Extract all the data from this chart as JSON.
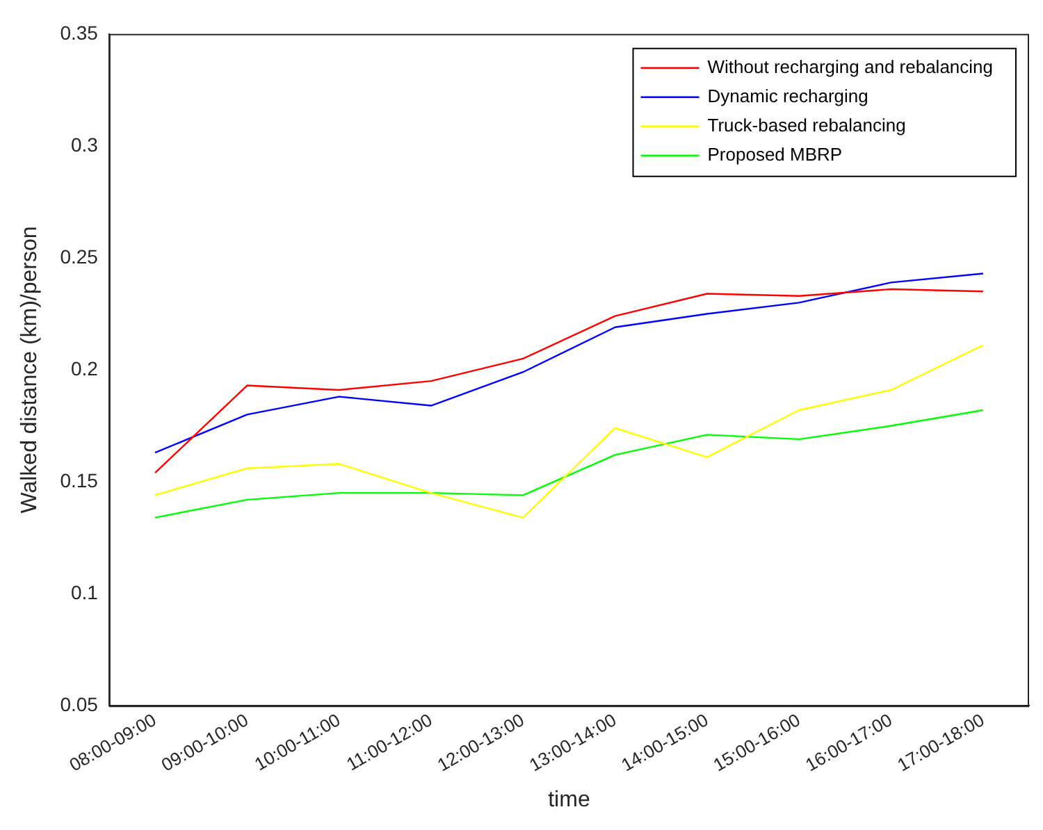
{
  "chart_data": {
    "type": "line",
    "xlabel": "time",
    "ylabel": "Walked distance (km)/person",
    "categories": [
      "08:00-09:00",
      "09:00-10:00",
      "10:00-11:00",
      "11:00-12:00",
      "12:00-13:00",
      "13:00-14:00",
      "14:00-15:00",
      "15:00-16:00",
      "16:00-17:00",
      "17:00-18:00"
    ],
    "series": [
      {
        "name": "Without recharging and rebalancing",
        "color": "#ff0000",
        "values": [
          0.154,
          0.193,
          0.191,
          0.195,
          0.205,
          0.224,
          0.234,
          0.233,
          0.236,
          0.235
        ]
      },
      {
        "name": "Dynamic recharging",
        "color": "#0000ff",
        "values": [
          0.163,
          0.18,
          0.188,
          0.184,
          0.199,
          0.219,
          0.225,
          0.23,
          0.239,
          0.243
        ]
      },
      {
        "name": "Truck-based rebalancing",
        "color": "#ffff00",
        "values": [
          0.144,
          0.156,
          0.158,
          0.145,
          0.134,
          0.174,
          0.161,
          0.182,
          0.191,
          0.211
        ]
      },
      {
        "name": "Proposed MBRP",
        "color": "#00ff00",
        "values": [
          0.134,
          0.142,
          0.145,
          0.145,
          0.144,
          0.162,
          0.171,
          0.169,
          0.175,
          0.182
        ]
      }
    ],
    "ylim": [
      0.05,
      0.35
    ],
    "yticks": [
      0.05,
      0.1,
      0.15,
      0.2,
      0.25,
      0.3,
      0.35
    ],
    "grid": false,
    "legend": "top right",
    "marker": "none",
    "line_style": "solid"
  }
}
